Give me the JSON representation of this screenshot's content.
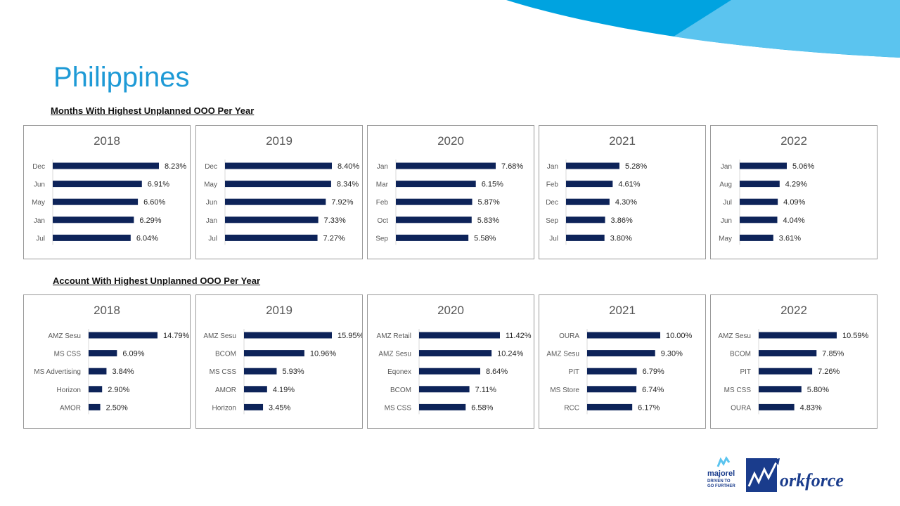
{
  "page_title": "Philippines",
  "sections": [
    {
      "title": "Months With Highest Unplanned OOO Per Year"
    },
    {
      "title": "Account With Highest Unplanned OOO Per Year"
    }
  ],
  "colors": {
    "bar": "#0d2359",
    "title": "#1e9ad6",
    "swoosh_dark": "#00a3e0",
    "swoosh_light": "#5bc4ef"
  },
  "logo": {
    "brand": "majorel",
    "tagline_1": "DRIVEN TO",
    "tagline_2": "GO FURTHER",
    "product": "Workforce"
  },
  "chart_data": [
    {
      "type": "bar",
      "orientation": "horizontal",
      "title": "2018",
      "categories": [
        "Dec",
        "Jun",
        "May",
        "Jan",
        "Jul"
      ],
      "values": [
        8.23,
        6.91,
        6.6,
        6.29,
        6.04
      ],
      "labels": [
        "8.23%",
        "6.91%",
        "6.60%",
        "6.29%",
        "6.04%"
      ]
    },
    {
      "type": "bar",
      "orientation": "horizontal",
      "title": "2019",
      "categories": [
        "Dec",
        "May",
        "Jun",
        "Jan",
        "Jul"
      ],
      "values": [
        8.4,
        8.34,
        7.92,
        7.33,
        7.27
      ],
      "labels": [
        "8.40%",
        "8.34%",
        "7.92%",
        "7.33%",
        "7.27%"
      ]
    },
    {
      "type": "bar",
      "orientation": "horizontal",
      "title": "2020",
      "categories": [
        "Jan",
        "Mar",
        "Feb",
        "Oct",
        "Sep"
      ],
      "values": [
        7.68,
        6.15,
        5.87,
        5.83,
        5.58
      ],
      "labels": [
        "7.68%",
        "6.15%",
        "5.87%",
        "5.83%",
        "5.58%"
      ]
    },
    {
      "type": "bar",
      "orientation": "horizontal",
      "title": "2021",
      "categories": [
        "Jan",
        "Feb",
        "Dec",
        "Sep",
        "Jul"
      ],
      "values": [
        5.28,
        4.61,
        4.3,
        3.86,
        3.8
      ],
      "labels": [
        "5.28%",
        "4.61%",
        "4.30%",
        "3.86%",
        "3.80%"
      ]
    },
    {
      "type": "bar",
      "orientation": "horizontal",
      "title": "2022",
      "categories": [
        "Jan",
        "Aug",
        "Jul",
        "Jun",
        "May"
      ],
      "values": [
        5.06,
        4.29,
        4.09,
        4.04,
        3.61
      ],
      "labels": [
        "5.06%",
        "4.29%",
        "4.09%",
        "4.04%",
        "3.61%"
      ]
    },
    {
      "type": "bar",
      "orientation": "horizontal",
      "title": "2018",
      "categories": [
        "AMZ Sesu",
        "MS CSS",
        "MS Advertising",
        "Horizon",
        "AMOR"
      ],
      "values": [
        14.79,
        6.09,
        3.84,
        2.9,
        2.5
      ],
      "labels": [
        "14.79%",
        "6.09%",
        "3.84%",
        "2.90%",
        "2.50%"
      ]
    },
    {
      "type": "bar",
      "orientation": "horizontal",
      "title": "2019",
      "categories": [
        "AMZ Sesu",
        "BCOM",
        "MS CSS",
        "AMOR",
        "Horizon"
      ],
      "values": [
        15.95,
        10.96,
        5.93,
        4.19,
        3.45
      ],
      "labels": [
        "15.95%",
        "10.96%",
        "5.93%",
        "4.19%",
        "3.45%"
      ]
    },
    {
      "type": "bar",
      "orientation": "horizontal",
      "title": "2020",
      "categories": [
        "AMZ Retail",
        "AMZ Sesu",
        "Eqonex",
        "BCOM",
        "MS CSS"
      ],
      "values": [
        11.42,
        10.24,
        8.64,
        7.11,
        6.58
      ],
      "labels": [
        "11.42%",
        "10.24%",
        "8.64%",
        "7.11%",
        "6.58%"
      ]
    },
    {
      "type": "bar",
      "orientation": "horizontal",
      "title": "2021",
      "categories": [
        "OURA",
        "AMZ Sesu",
        "PIT",
        "MS Store",
        "RCC"
      ],
      "values": [
        10.0,
        9.3,
        6.79,
        6.74,
        6.17
      ],
      "labels": [
        "10.00%",
        "9.30%",
        "6.79%",
        "6.74%",
        "6.17%"
      ]
    },
    {
      "type": "bar",
      "orientation": "horizontal",
      "title": "2022",
      "categories": [
        "AMZ Sesu",
        "BCOM",
        "PIT",
        "MS CSS",
        "OURA"
      ],
      "values": [
        10.59,
        7.85,
        7.26,
        5.8,
        4.83
      ],
      "labels": [
        "10.59%",
        "7.85%",
        "7.26%",
        "5.80%",
        "4.83%"
      ]
    }
  ]
}
